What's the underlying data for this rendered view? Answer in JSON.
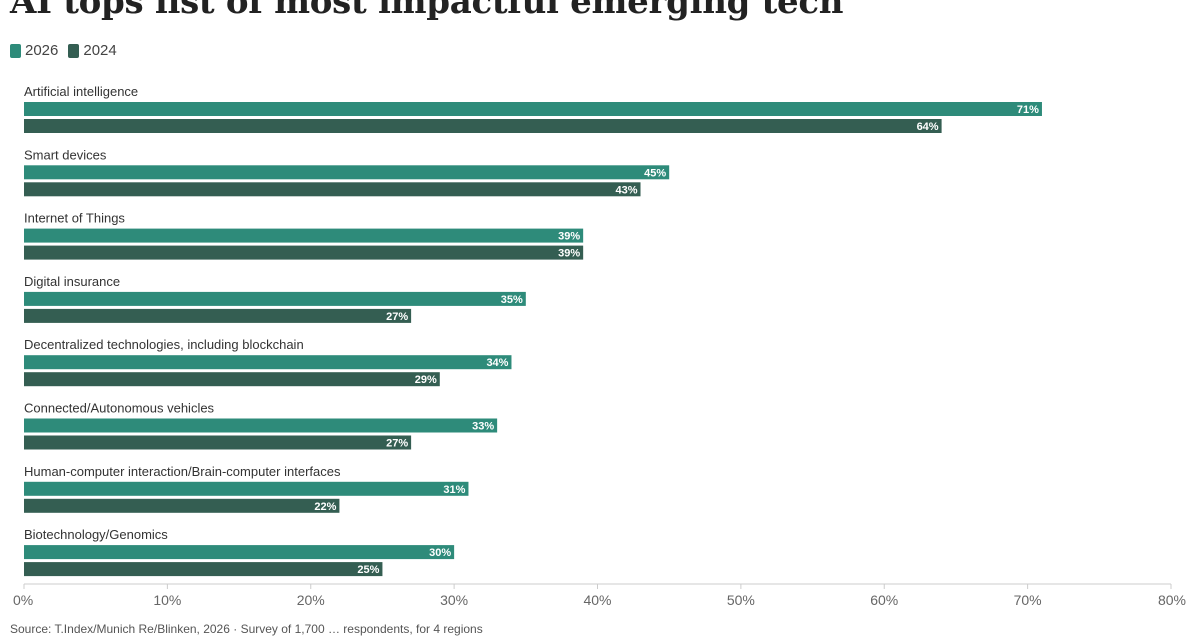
{
  "title": "AI tops list of most impactful emerging tech",
  "colors": {
    "s2026": "#2e8b7a",
    "s2024": "#345e52",
    "axis": "#cccccc",
    "tick_text": "#666666",
    "cat_text": "#333333"
  },
  "chart_data": {
    "type": "bar",
    "orientation": "horizontal",
    "categories": [
      "Artificial intelligence",
      "Smart devices",
      "Internet of Things",
      "Digital insurance",
      "Decentralized technologies, including blockchain",
      "Connected/Autonomous vehicles",
      "Human-computer interaction/Brain-computer interfaces",
      "Biotechnology/Genomics"
    ],
    "series": [
      {
        "name": "2026",
        "values": [
          71,
          45,
          39,
          35,
          34,
          33,
          31,
          30
        ],
        "labels": [
          "71%",
          "45%",
          "39%",
          "35%",
          "34%",
          "33%",
          "31%",
          "30%"
        ]
      },
      {
        "name": "2024",
        "values": [
          64,
          43,
          39,
          27,
          29,
          27,
          22,
          25
        ],
        "labels": [
          "64%",
          "43%",
          "39%",
          "27%",
          "29%",
          "27%",
          "22%",
          "25%"
        ]
      }
    ],
    "xlim": [
      0,
      80
    ],
    "xticks": [
      0,
      10,
      20,
      30,
      40,
      50,
      60,
      70,
      80
    ],
    "xtick_labels": [
      "0%",
      "10%",
      "20%",
      "30%",
      "40%",
      "50%",
      "60%",
      "70%",
      "80%"
    ],
    "legend_position": "top-left",
    "grid": false
  },
  "source_text": "Source: T.Index/Munich Re/Blinken, 2026 · Survey of 1,700 … respondents, for 4 regions"
}
